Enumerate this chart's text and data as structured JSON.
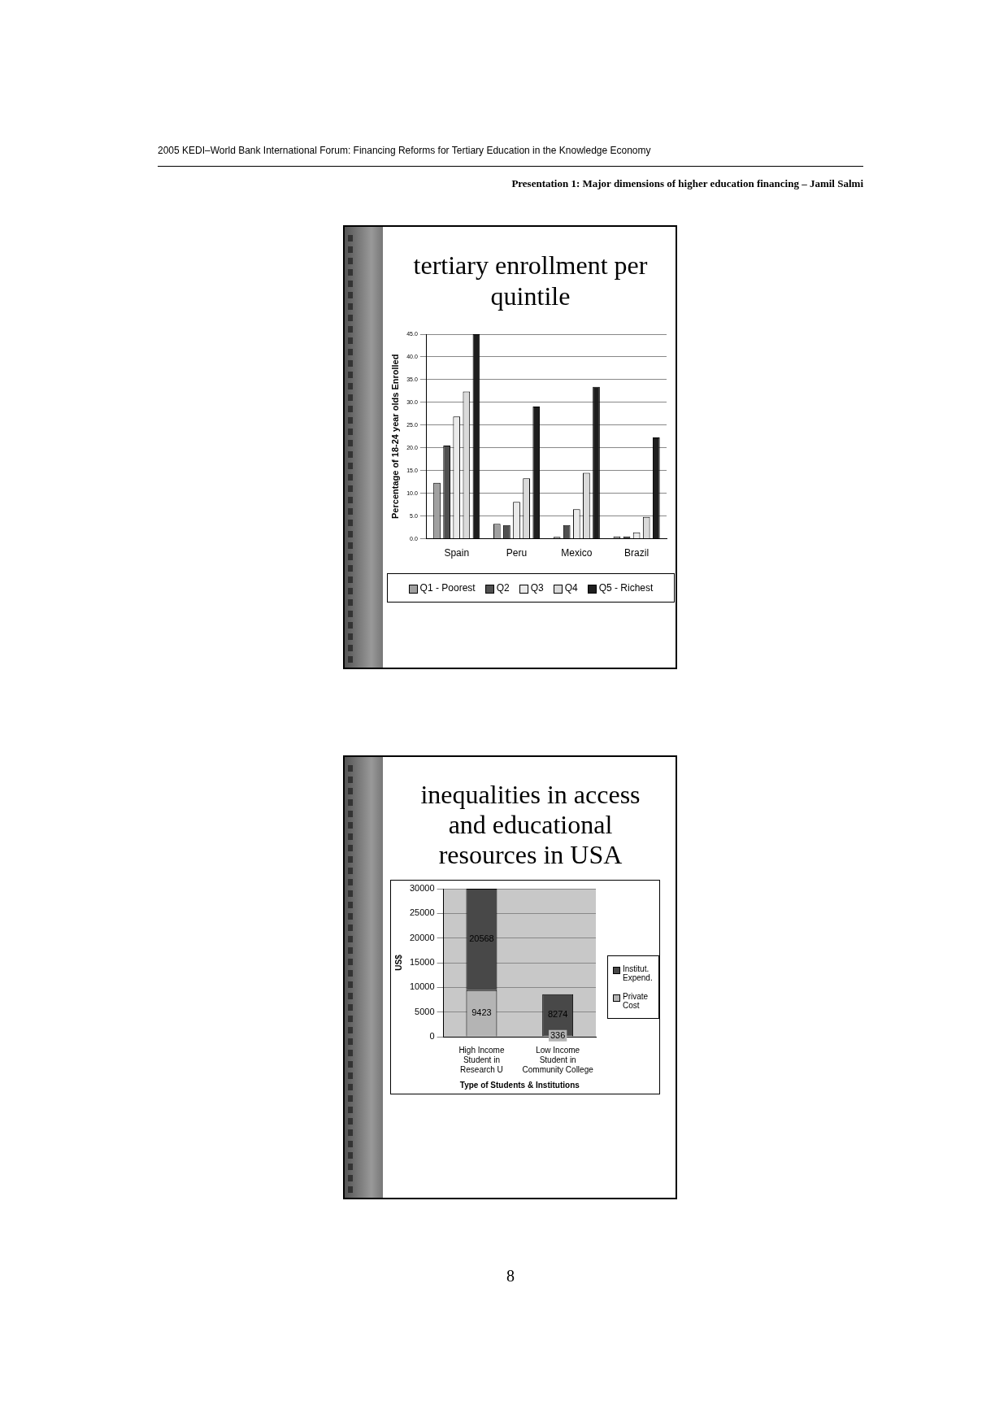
{
  "chart_data": [
    {
      "type": "bar",
      "title": "tertiary enrollment per quintile",
      "ylabel": "Percentage of 18-24 year olds Enrolled",
      "categories": [
        "Spain",
        "Peru",
        "Mexico",
        "Brazil"
      ],
      "series": [
        {
          "name": "Q1 - Poorest",
          "color": "#a0a0a0",
          "values": [
            12.3,
            3.3,
            0.4,
            0.5
          ]
        },
        {
          "name": "Q2",
          "color": "#505050",
          "values": [
            20.5,
            3.0,
            3.0,
            0.5
          ]
        },
        {
          "name": "Q3",
          "color": "#eaeaea",
          "values": [
            26.9,
            8.1,
            6.5,
            1.4
          ]
        },
        {
          "name": "Q4",
          "color": "#dadada",
          "values": [
            32.4,
            13.3,
            14.5,
            4.8
          ]
        },
        {
          "name": "Q5 - Richest",
          "color": "#1e1e1e",
          "values": [
            45.0,
            29.1,
            33.4,
            22.3
          ]
        }
      ],
      "ylim": [
        0,
        45
      ],
      "yticks": [
        {
          "value": 0,
          "label": "0.0"
        },
        {
          "value": 5,
          "label": "5.0"
        },
        {
          "value": 10,
          "label": "10.0"
        },
        {
          "value": 15,
          "label": "15.0"
        },
        {
          "value": 20,
          "label": "20.0"
        },
        {
          "value": 25,
          "label": "25.0"
        },
        {
          "value": 30,
          "label": "30.0"
        },
        {
          "value": 35,
          "label": "35.0"
        },
        {
          "value": 40,
          "label": "40.0"
        },
        {
          "value": 45,
          "label": "45.0"
        }
      ],
      "grid": "y",
      "legend": "bottom",
      "annotations": [
        "2005 KEDI–World Bank International Forum: Financing Reforms for Tertiary Education in the Knowledge Economy",
        "Presentation 1: Major dimensions of higher education financing – Jamil Salmi"
      ]
    },
    {
      "type": "bar",
      "title": "inequalities in access and educational resources in USA",
      "ylabel": "US$",
      "xlabel": "Type of Students & Institutions",
      "categories": [
        "High Income Student in Research U",
        "Low Income Student in Community College"
      ],
      "series": [
        {
          "name": "Private Cost",
          "color": "#b4b4b4",
          "values": [
            9423,
            336
          ]
        },
        {
          "name": "Institut. Expend.",
          "color": "#484848",
          "values": [
            20568,
            8274
          ]
        }
      ],
      "stacked": true,
      "data_labels": true,
      "ylim": [
        0,
        30000
      ],
      "yticks": [
        0,
        5000,
        10000,
        15000,
        20000,
        25000,
        30000
      ],
      "grid": "y",
      "legend": "right",
      "annotations": [
        "8"
      ]
    }
  ]
}
